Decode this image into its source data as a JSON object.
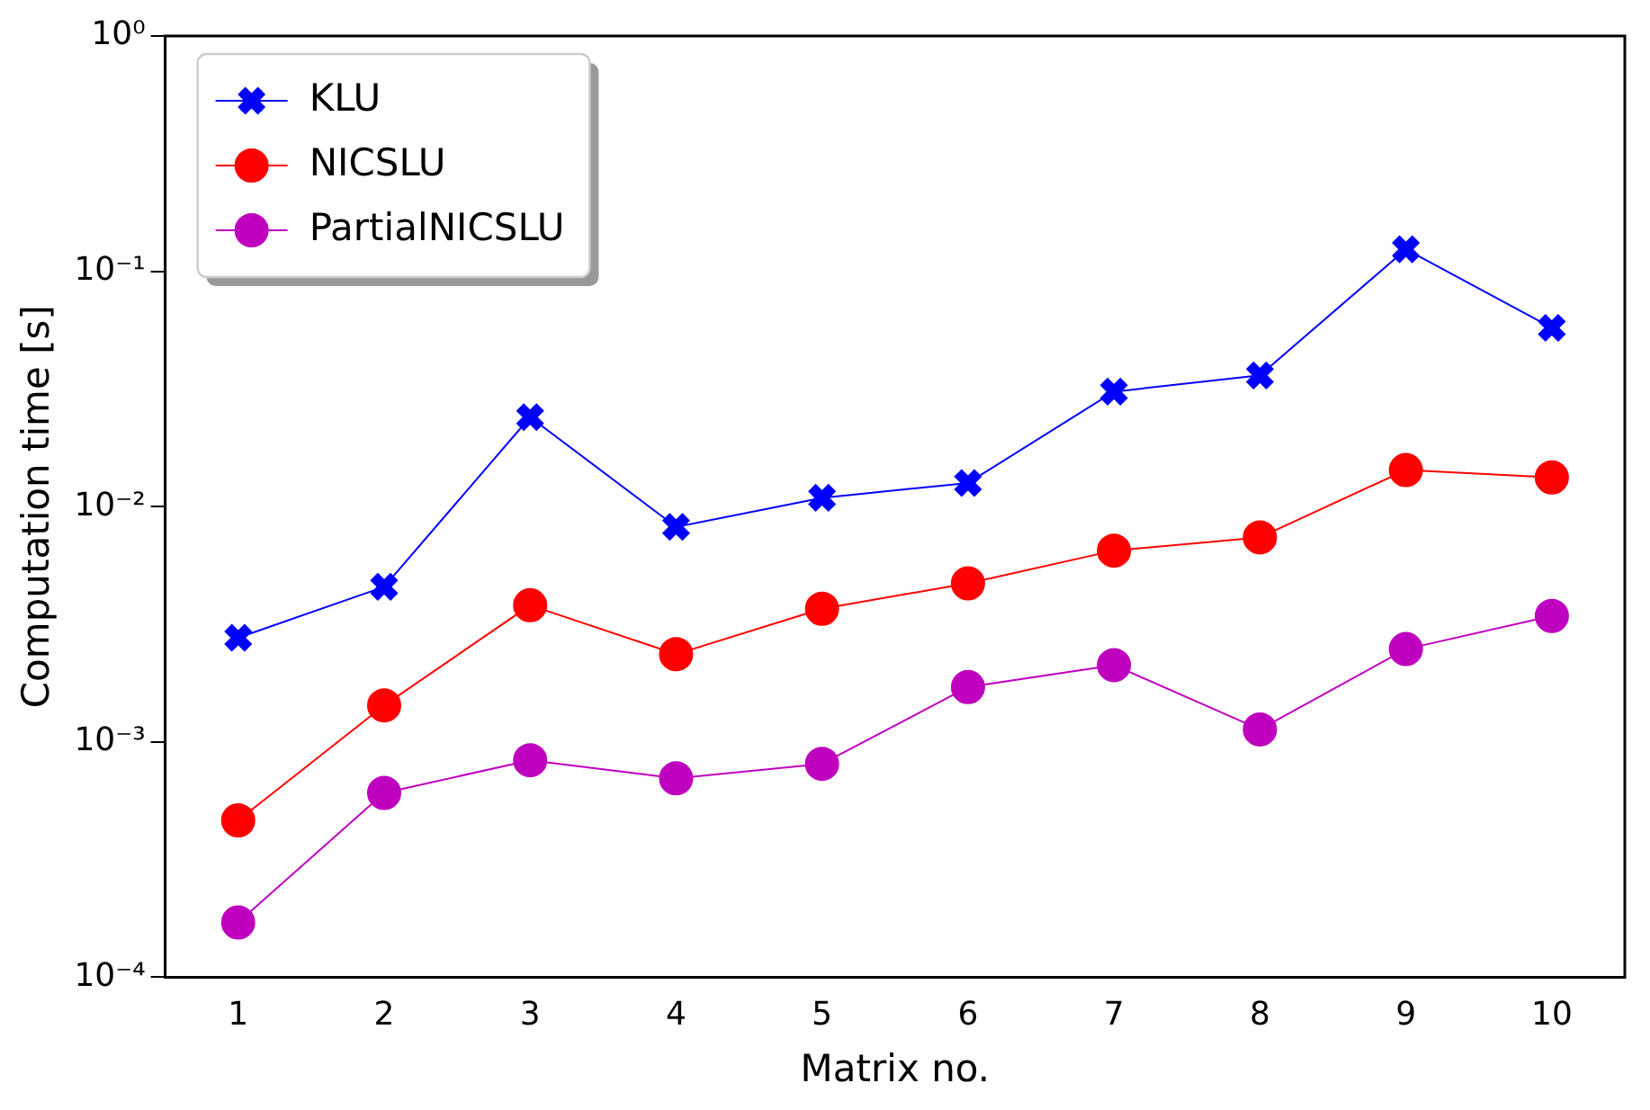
{
  "chart_data": {
    "type": "line",
    "xlabel": "Matrix no.",
    "ylabel": "Computation time [s]",
    "log": "y",
    "x": [
      1,
      2,
      3,
      4,
      5,
      6,
      7,
      8,
      9,
      10
    ],
    "xlim": [
      0.5,
      10.5
    ],
    "xticks": [
      1,
      2,
      3,
      4,
      5,
      6,
      7,
      8,
      9,
      10
    ],
    "ylim": [
      0.0001,
      1
    ],
    "yticks": [
      {
        "value": 0.0001,
        "label": "10⁻⁴"
      },
      {
        "value": 0.001,
        "label": "10⁻³"
      },
      {
        "value": 0.01,
        "label": "10⁻²"
      },
      {
        "value": 0.1,
        "label": "10⁻¹"
      },
      {
        "value": 1,
        "label": "10⁰"
      }
    ],
    "grid": false,
    "legend": "top left",
    "line_style": "solid",
    "series": [
      {
        "name": "KLU",
        "color": "#0000ff",
        "marker": "cross",
        "values": [
          0.00277,
          0.00456,
          0.024,
          0.0082,
          0.0109,
          0.0126,
          0.0308,
          0.0361,
          0.124,
          0.0575
        ]
      },
      {
        "name": "NICSLU",
        "color": "#ff0000",
        "marker": "circle",
        "values": [
          0.000464,
          0.00143,
          0.00381,
          0.00236,
          0.00368,
          0.00472,
          0.0065,
          0.0074,
          0.0143,
          0.0133
        ]
      },
      {
        "name": "PartialNICSLU",
        "color": "#bf00bf",
        "marker": "circle",
        "values": [
          0.000171,
          0.000607,
          0.000836,
          0.0007,
          0.000807,
          0.00171,
          0.00212,
          0.00113,
          0.00248,
          0.00343
        ]
      }
    ]
  }
}
